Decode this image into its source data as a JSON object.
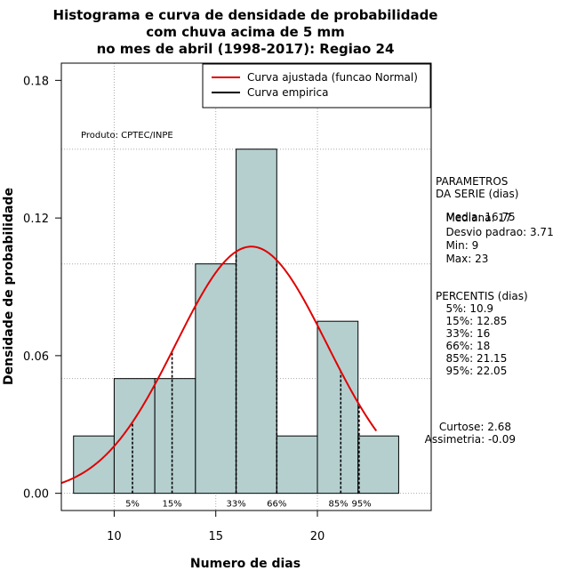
{
  "chart_data": {
    "type": "bar",
    "title_lines": [
      "Histograma e curva de densidade de probabilidade",
      "com chuva acima de 5 mm",
      "no mes de abril (1998-2017): Regiao 24"
    ],
    "xlabel": "Numero de dias",
    "ylabel": "Densidade de probabilidade",
    "xlim": [
      7.4,
      25.6
    ],
    "ylim": [
      -0.0075,
      0.1875
    ],
    "x_ticks": [
      10,
      15,
      20
    ],
    "y_ticks": [
      0.0,
      0.06,
      0.12,
      0.18
    ],
    "y_tick_labels": [
      "0.00",
      "0.06",
      "0.12",
      "0.18"
    ],
    "grid_x": [
      10,
      15,
      20
    ],
    "grid_y": [
      0.0,
      0.05,
      0.1,
      0.15
    ],
    "bins": [
      {
        "x0": 8,
        "x1": 10,
        "density": 0.025
      },
      {
        "x0": 10,
        "x1": 12,
        "density": 0.05
      },
      {
        "x0": 12,
        "x1": 14,
        "density": 0.05
      },
      {
        "x0": 14,
        "x1": 16,
        "density": 0.1
      },
      {
        "x0": 16,
        "x1": 18,
        "density": 0.15
      },
      {
        "x0": 18,
        "x1": 20,
        "density": 0.025
      },
      {
        "x0": 20,
        "x1": 22,
        "density": 0.075
      },
      {
        "x0": 22,
        "x1": 24,
        "density": 0.025
      }
    ],
    "bar_color": "#b5cfcf",
    "curve_color": "#e00000",
    "normal_fit": {
      "mean": 16.75,
      "sd": 3.71,
      "x_from": 7.4,
      "x_to": 22.9
    },
    "legend": {
      "position": "top-right",
      "entries": [
        {
          "label": "Curva ajustada (funcao Normal)",
          "color": "#e00000"
        },
        {
          "label": "Curva empirica",
          "color": "#000000"
        }
      ]
    },
    "product_label": "Produto: CPTEC/INPE",
    "percentile_marks": [
      {
        "label": "5%",
        "x": 10.9
      },
      {
        "label": "15%",
        "x": 12.85
      },
      {
        "label": "33%",
        "x": 16
      },
      {
        "label": "66%",
        "x": 18
      },
      {
        "label": "85%",
        "x": 21.15
      },
      {
        "label": "95%",
        "x": 22.05
      }
    ],
    "parametros_lines": [
      "PARAMETROS",
      "DA SERIE (dias)",
      "   Media: 16.75",
      "   Mediana: 17",
      "   Desvio padrao: 3.71",
      "   Min: 9",
      "   Max: 23"
    ],
    "percentis_lines": [
      "PERCENTIS (dias)",
      "   5%: 10.9",
      "   15%: 12.85",
      "   33%: 16",
      "   66%: 18",
      "   85%: 21.15",
      "   95%: 22.05"
    ],
    "shape_lines": [
      "Curtose: 2.68",
      "Assimetria: -0.09"
    ]
  }
}
